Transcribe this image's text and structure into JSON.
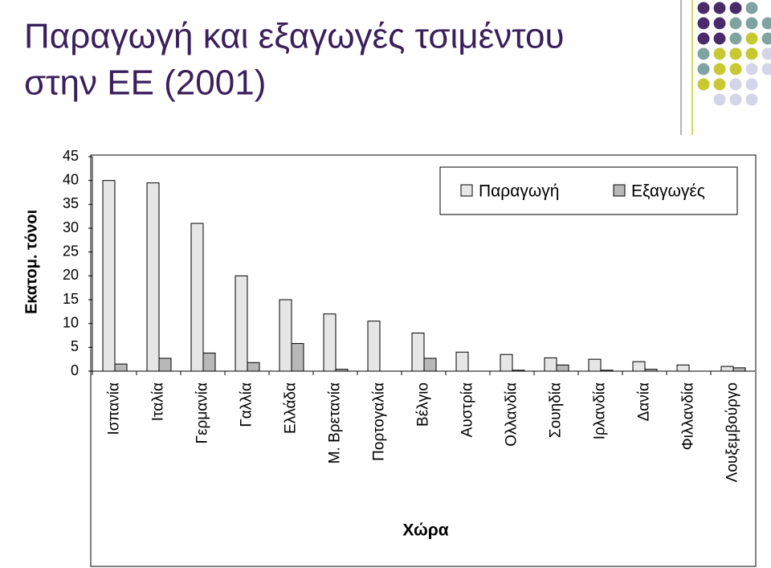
{
  "chart_data": {
    "type": "bar",
    "title_lines": [
      "Παραγωγή και εξαγωγές τσιμέντου",
      "στην ΕΕ (2001)"
    ],
    "y_label": "Εκατομ. τόνοι",
    "x_label": "Χώρα",
    "categories": [
      "Ισπανία",
      "Ιταλία",
      "Γερμανία",
      "Γαλλία",
      "Ελλάδα",
      "Μ. Βρετανία",
      "Πορτογαλία",
      "Βέλγιο",
      "Αυστρία",
      "Ολλανδία",
      "Σουηδία",
      "Ιρλανδία",
      "Δανία",
      "Φιλλανδία",
      "Λουξεμβούργο"
    ],
    "series": [
      {
        "name": "Παραγωγή",
        "color": "#e6e6e6",
        "values": [
          40,
          39.5,
          31,
          20,
          15,
          12,
          10.5,
          8,
          4,
          3.5,
          2.8,
          2.5,
          2,
          1.3,
          1
        ]
      },
      {
        "name": "Εξαγωγές",
        "color": "#b8b8b8",
        "values": [
          1.5,
          2.7,
          3.8,
          1.8,
          5.8,
          0.4,
          0,
          2.7,
          0,
          0.2,
          1.3,
          0.2,
          0.4,
          0,
          0.7
        ]
      }
    ],
    "ylim": [
      0,
      45
    ],
    "yticks": [
      0,
      5,
      10,
      15,
      20,
      25,
      30,
      35,
      40,
      45
    ],
    "legend": "top-right"
  }
}
